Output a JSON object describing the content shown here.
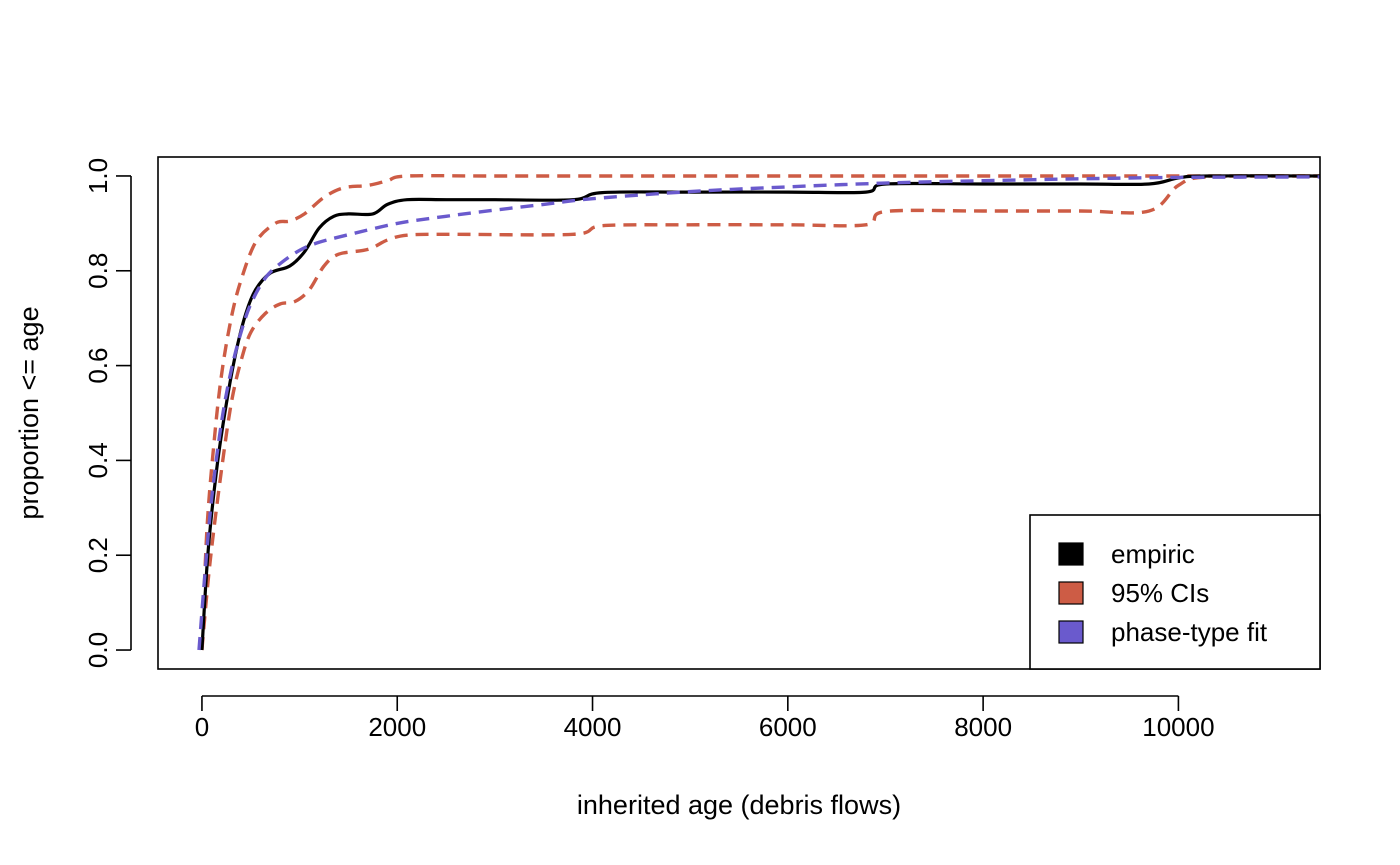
{
  "chart_data": {
    "type": "line",
    "title": "",
    "xlabel": "inherited age (debris flows)",
    "ylabel": "proportion <= age",
    "xlim": [
      -450,
      11450
    ],
    "ylim": [
      -0.04,
      1.04
    ],
    "x_ticks": [
      0,
      2000,
      4000,
      6000,
      8000,
      10000
    ],
    "y_ticks": [
      0.0,
      0.2,
      0.4,
      0.6,
      0.8,
      1.0
    ],
    "x_tick_labels": [
      "0",
      "2000",
      "4000",
      "6000",
      "8000",
      "10000"
    ],
    "y_tick_labels": [
      "0.0",
      "0.2",
      "0.4",
      "0.6",
      "0.8",
      "1.0"
    ],
    "grid": false,
    "legend_position": "bottom-right",
    "legend": [
      {
        "label": "empiric",
        "color": "#000000"
      },
      {
        "label": "95% CIs",
        "color": "#CD5C45"
      },
      {
        "label": "phase-type fit",
        "color": "#6A5ACD"
      }
    ],
    "series": [
      {
        "name": "empiric",
        "color": "#000000",
        "style": "solid",
        "points": [
          [
            0,
            0
          ],
          [
            60,
            0.2
          ],
          [
            150,
            0.38
          ],
          [
            250,
            0.52
          ],
          [
            350,
            0.63
          ],
          [
            450,
            0.71
          ],
          [
            550,
            0.76
          ],
          [
            700,
            0.795
          ],
          [
            900,
            0.81
          ],
          [
            1050,
            0.84
          ],
          [
            1200,
            0.89
          ],
          [
            1350,
            0.915
          ],
          [
            1500,
            0.92
          ],
          [
            1750,
            0.92
          ],
          [
            1900,
            0.94
          ],
          [
            2100,
            0.95
          ],
          [
            2500,
            0.95
          ],
          [
            3000,
            0.95
          ],
          [
            3800,
            0.95
          ],
          [
            4100,
            0.965
          ],
          [
            5000,
            0.966
          ],
          [
            6000,
            0.966
          ],
          [
            6800,
            0.966
          ],
          [
            7000,
            0.983
          ],
          [
            8000,
            0.983
          ],
          [
            9000,
            0.983
          ],
          [
            9700,
            0.983
          ],
          [
            10000,
            0.996
          ],
          [
            10300,
            1.0
          ],
          [
            11450,
            1.0
          ]
        ]
      },
      {
        "name": "95% CIs",
        "color": "#CD5C45",
        "style": "dashed",
        "points": [
          [
            0,
            0
          ],
          [
            50,
            0.25
          ],
          [
            120,
            0.43
          ],
          [
            200,
            0.58
          ],
          [
            300,
            0.7
          ],
          [
            400,
            0.78
          ],
          [
            550,
            0.86
          ],
          [
            750,
            0.9
          ],
          [
            900,
            0.905
          ],
          [
            1050,
            0.92
          ],
          [
            1250,
            0.955
          ],
          [
            1450,
            0.975
          ],
          [
            1700,
            0.98
          ],
          [
            1900,
            0.99
          ],
          [
            2100,
            1.0
          ],
          [
            3000,
            1.0
          ],
          [
            5000,
            1.0
          ],
          [
            8000,
            1.0
          ],
          [
            11450,
            1.0
          ]
        ]
      },
      {
        "name": "95% CIs",
        "color": "#CD5C45",
        "style": "dashed",
        "points": [
          [
            0,
            0
          ],
          [
            80,
            0.18
          ],
          [
            200,
            0.38
          ],
          [
            300,
            0.52
          ],
          [
            400,
            0.61
          ],
          [
            500,
            0.67
          ],
          [
            650,
            0.71
          ],
          [
            800,
            0.73
          ],
          [
            950,
            0.735
          ],
          [
            1100,
            0.76
          ],
          [
            1250,
            0.81
          ],
          [
            1400,
            0.835
          ],
          [
            1700,
            0.845
          ],
          [
            1900,
            0.865
          ],
          [
            2100,
            0.875
          ],
          [
            2500,
            0.877
          ],
          [
            3800,
            0.877
          ],
          [
            4100,
            0.895
          ],
          [
            5000,
            0.897
          ],
          [
            6000,
            0.897
          ],
          [
            6800,
            0.897
          ],
          [
            7000,
            0.925
          ],
          [
            8000,
            0.926
          ],
          [
            9000,
            0.926
          ],
          [
            9700,
            0.926
          ],
          [
            10000,
            0.98
          ],
          [
            10300,
            0.998
          ],
          [
            11450,
            1.0
          ]
        ]
      },
      {
        "name": "phase-type fit",
        "color": "#6A5ACD",
        "style": "dashed",
        "points": [
          [
            -30,
            0
          ],
          [
            30,
            0.16
          ],
          [
            100,
            0.32
          ],
          [
            200,
            0.48
          ],
          [
            300,
            0.59
          ],
          [
            400,
            0.67
          ],
          [
            500,
            0.73
          ],
          [
            650,
            0.785
          ],
          [
            800,
            0.815
          ],
          [
            1000,
            0.843
          ],
          [
            1200,
            0.86
          ],
          [
            1500,
            0.876
          ],
          [
            2000,
            0.9
          ],
          [
            2500,
            0.915
          ],
          [
            3000,
            0.928
          ],
          [
            3500,
            0.94
          ],
          [
            4000,
            0.952
          ],
          [
            5000,
            0.967
          ],
          [
            6000,
            0.977
          ],
          [
            7000,
            0.985
          ],
          [
            8000,
            0.99
          ],
          [
            9000,
            0.994
          ],
          [
            10000,
            0.997
          ],
          [
            11450,
            0.998
          ]
        ]
      }
    ]
  }
}
